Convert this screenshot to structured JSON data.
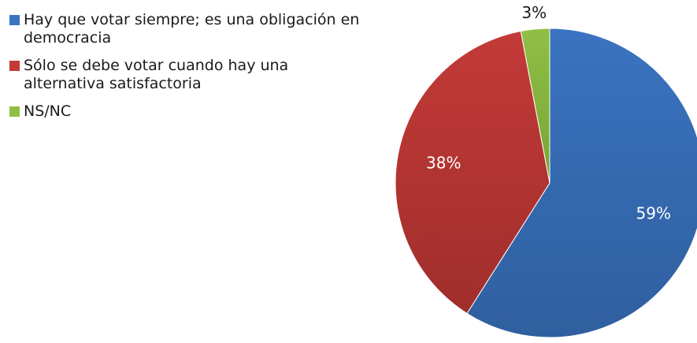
{
  "chart_data": {
    "type": "pie",
    "title": "",
    "legend_position": "top-left",
    "slices": [
      {
        "label": "Hay que votar siempre; es una obligación en democracia",
        "value": 59,
        "data_label": "59%",
        "color": "#3a73c0",
        "color_dark": "#2f5f9f"
      },
      {
        "label": "Sólo se debe votar cuando hay una alternativa satisfactoria",
        "value": 38,
        "data_label": "38%",
        "color": "#c33a37",
        "color_dark": "#a02e2c"
      },
      {
        "label": "NS/NC",
        "value": 3,
        "data_label": "3%",
        "color": "#8fbf45",
        "color_dark": "#78a535"
      }
    ]
  }
}
